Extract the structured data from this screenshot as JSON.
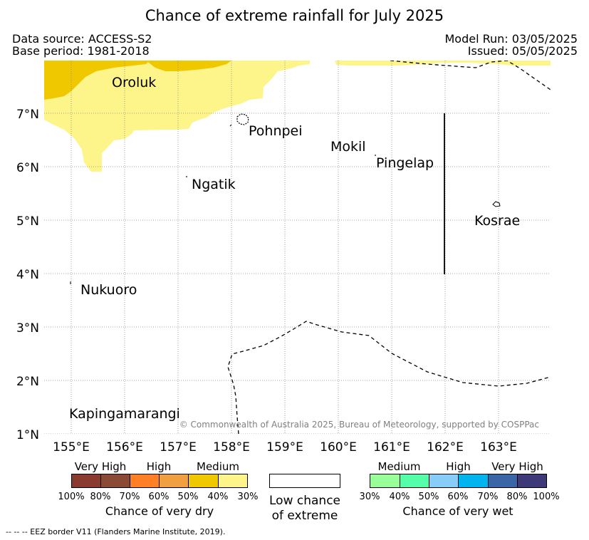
{
  "header": {
    "title": "Chance of extreme rainfall for July 2025",
    "data_source": "Data source: ACCESS-S2",
    "base_period": "Base period: 1981-2018",
    "model_run": "Model Run: 03/05/2025",
    "issued": "Issued: 05/05/2025"
  },
  "map": {
    "lat_labels": [
      "7°N",
      "6°N",
      "5°N",
      "4°N",
      "3°N",
      "2°N",
      "1°N"
    ],
    "lon_labels": [
      "155°E",
      "156°E",
      "157°E",
      "158°E",
      "159°E",
      "160°E",
      "161°E",
      "162°E",
      "163°E"
    ],
    "places": [
      "Oroluk",
      "Pohnpei",
      "Mokil",
      "Pingelap",
      "Ngatik",
      "Kosrae",
      "Nukuoro",
      "Kapingamarangi"
    ],
    "copyright": "© Commonwealth of Australia 2025, Bureau of Meteorology, supported by COSPPac",
    "colors": {
      "dry_medium": "#fdf48a",
      "dry_high": "#f0c800",
      "grid": "#888888"
    }
  },
  "legend": {
    "dry": {
      "categories": [
        "Very High",
        "High",
        "Medium"
      ],
      "ticks": [
        "100%",
        "80%",
        "70%",
        "60%",
        "50%",
        "40%",
        "30%"
      ],
      "colors": [
        "#8b3a30",
        "#8a4a35",
        "#ff7f24",
        "#f0a040",
        "#f0c800",
        "#fdf48a"
      ],
      "title": "Chance of very dry"
    },
    "low": {
      "line1": "Low chance",
      "line2": "of extreme",
      "color": "#ffffff"
    },
    "wet": {
      "categories": [
        "Medium",
        "High",
        "Very High"
      ],
      "ticks": [
        "30%",
        "40%",
        "50%",
        "60%",
        "70%",
        "80%",
        "100%"
      ],
      "colors": [
        "#99ff99",
        "#55ffaa",
        "#88ccf8",
        "#00b4f0",
        "#3a66a8",
        "#3e3a7a"
      ],
      "title": "Chance of very wet"
    }
  },
  "footnote": "--  --  -- EEZ border V11 (Flanders Marine Institute, 2019)."
}
